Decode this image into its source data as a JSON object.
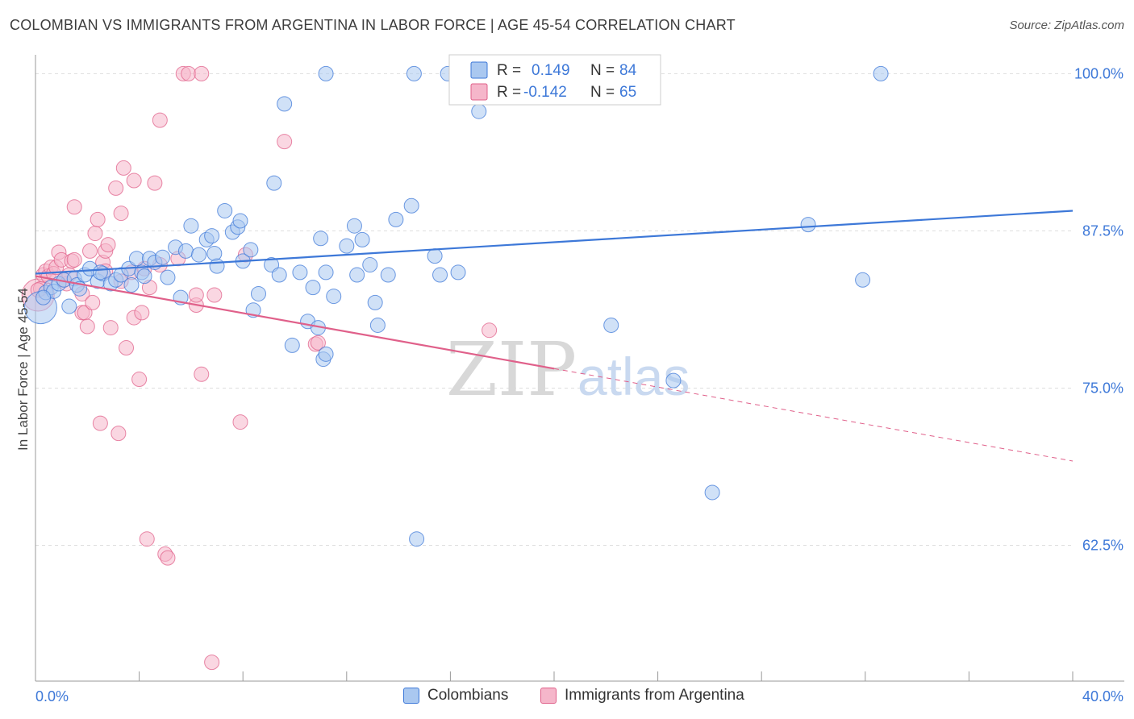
{
  "title": "COLOMBIAN VS IMMIGRANTS FROM ARGENTINA IN LABOR FORCE | AGE 45-54 CORRELATION CHART",
  "source": "Source: ZipAtlas.com",
  "watermark": {
    "zip": "ZIP",
    "atlas": "atlas"
  },
  "colors": {
    "blue": "#3d78d8",
    "blue_fill": "#aac8f0",
    "pink": "#e0608a",
    "pink_fill": "#f5b6ca",
    "tick_label": "#3d78d8",
    "grid": "#dddddd",
    "axis": "#999999"
  },
  "stats_legend": [
    {
      "r_label": "R =",
      "r_value": "0.149",
      "n_label": "N =",
      "n_value": "84",
      "series": "blue"
    },
    {
      "r_label": "R =",
      "r_value": "-0.142",
      "n_label": "N =",
      "n_value": "65",
      "series": "pink"
    }
  ],
  "chart_data": {
    "type": "scatter",
    "title": "COLOMBIAN VS IMMIGRANTS FROM ARGENTINA IN LABOR FORCE | AGE 45-54 CORRELATION CHART",
    "xlabel": "",
    "ylabel": "In Labor Force | Age 45-54",
    "xlim": [
      0,
      40
    ],
    "ylim": [
      51.7,
      101.5
    ],
    "x_tick_labels": [
      {
        "value": 0,
        "label": "0.0%"
      },
      {
        "value": 40,
        "label": "40.0%"
      }
    ],
    "x_minor_ticks": [
      4,
      8,
      12,
      16,
      20,
      24,
      28,
      32,
      36,
      40
    ],
    "y_ticks": [
      {
        "value": 100,
        "label": "100.0%"
      },
      {
        "value": 87.5,
        "label": "87.5%"
      },
      {
        "value": 75,
        "label": "75.0%"
      },
      {
        "value": 62.5,
        "label": "62.5%"
      }
    ],
    "grid": true,
    "legend_position": "bottom",
    "series": [
      {
        "name": "Colombians",
        "color": "#3d78d8",
        "fill": "#aac8f0",
        "trend": {
          "x": [
            0,
            40
          ],
          "y": [
            84.1,
            89.1
          ],
          "dashed_from": null
        },
        "points": [
          {
            "x": 0.2,
            "y": 81.4,
            "big": true
          },
          {
            "x": 0.4,
            "y": 82.6
          },
          {
            "x": 0.6,
            "y": 83.0
          },
          {
            "x": 0.7,
            "y": 82.7
          },
          {
            "x": 0.9,
            "y": 83.3
          },
          {
            "x": 1.1,
            "y": 83.6
          },
          {
            "x": 1.3,
            "y": 81.5
          },
          {
            "x": 1.5,
            "y": 83.7
          },
          {
            "x": 1.6,
            "y": 83.2
          },
          {
            "x": 1.9,
            "y": 84.0
          },
          {
            "x": 2.1,
            "y": 84.5
          },
          {
            "x": 2.4,
            "y": 83.5
          },
          {
            "x": 2.6,
            "y": 84.1
          },
          {
            "x": 2.9,
            "y": 83.3
          },
          {
            "x": 3.1,
            "y": 83.6
          },
          {
            "x": 3.3,
            "y": 84.0
          },
          {
            "x": 3.6,
            "y": 84.5
          },
          {
            "x": 3.9,
            "y": 85.3
          },
          {
            "x": 4.1,
            "y": 84.2
          },
          {
            "x": 4.2,
            "y": 83.9
          },
          {
            "x": 4.4,
            "y": 85.3
          },
          {
            "x": 4.6,
            "y": 85.0
          },
          {
            "x": 4.9,
            "y": 85.4
          },
          {
            "x": 5.1,
            "y": 83.8
          },
          {
            "x": 5.4,
            "y": 86.2
          },
          {
            "x": 5.6,
            "y": 82.2
          },
          {
            "x": 5.8,
            "y": 85.9
          },
          {
            "x": 6.0,
            "y": 87.9
          },
          {
            "x": 6.3,
            "y": 85.6
          },
          {
            "x": 6.6,
            "y": 86.8
          },
          {
            "x": 6.8,
            "y": 87.1
          },
          {
            "x": 6.9,
            "y": 85.7
          },
          {
            "x": 7.0,
            "y": 84.7
          },
          {
            "x": 7.3,
            "y": 89.1
          },
          {
            "x": 7.6,
            "y": 87.4
          },
          {
            "x": 7.8,
            "y": 87.8
          },
          {
            "x": 7.9,
            "y": 88.3
          },
          {
            "x": 8.0,
            "y": 85.1
          },
          {
            "x": 8.3,
            "y": 86.0
          },
          {
            "x": 8.4,
            "y": 81.2
          },
          {
            "x": 8.6,
            "y": 82.5
          },
          {
            "x": 9.1,
            "y": 84.8
          },
          {
            "x": 9.2,
            "y": 91.3
          },
          {
            "x": 9.4,
            "y": 84.0
          },
          {
            "x": 9.6,
            "y": 97.6
          },
          {
            "x": 9.9,
            "y": 78.4
          },
          {
            "x": 10.2,
            "y": 84.2
          },
          {
            "x": 10.5,
            "y": 80.3
          },
          {
            "x": 10.7,
            "y": 83.0
          },
          {
            "x": 10.9,
            "y": 79.8
          },
          {
            "x": 11.0,
            "y": 86.9
          },
          {
            "x": 11.1,
            "y": 77.3
          },
          {
            "x": 11.2,
            "y": 77.7
          },
          {
            "x": 11.2,
            "y": 84.2
          },
          {
            "x": 11.5,
            "y": 82.3
          },
          {
            "x": 11.2,
            "y": 100.0
          },
          {
            "x": 12.0,
            "y": 86.3
          },
          {
            "x": 12.3,
            "y": 87.9
          },
          {
            "x": 12.4,
            "y": 84.0
          },
          {
            "x": 12.6,
            "y": 86.8
          },
          {
            "x": 12.9,
            "y": 84.8
          },
          {
            "x": 13.1,
            "y": 81.8
          },
          {
            "x": 13.2,
            "y": 80.0
          },
          {
            "x": 13.6,
            "y": 84.0
          },
          {
            "x": 13.9,
            "y": 88.4
          },
          {
            "x": 14.5,
            "y": 89.5
          },
          {
            "x": 14.7,
            "y": 63.0
          },
          {
            "x": 14.6,
            "y": 100.0
          },
          {
            "x": 15.4,
            "y": 85.5
          },
          {
            "x": 15.6,
            "y": 84.0
          },
          {
            "x": 15.9,
            "y": 100.0
          },
          {
            "x": 16.3,
            "y": 84.2
          },
          {
            "x": 17.1,
            "y": 97.0
          },
          {
            "x": 22.1,
            "y": 100.0
          },
          {
            "x": 22.2,
            "y": 80.0
          },
          {
            "x": 24.6,
            "y": 75.6
          },
          {
            "x": 26.1,
            "y": 66.7
          },
          {
            "x": 29.8,
            "y": 88.0
          },
          {
            "x": 31.9,
            "y": 83.6
          },
          {
            "x": 32.6,
            "y": 100.0
          },
          {
            "x": 0.3,
            "y": 82.2
          },
          {
            "x": 1.7,
            "y": 82.9
          },
          {
            "x": 3.7,
            "y": 83.2
          },
          {
            "x": 2.5,
            "y": 84.2
          }
        ]
      },
      {
        "name": "Immigrants from Argentina",
        "color": "#e0608a",
        "fill": "#f5b6ca",
        "trend": {
          "x": [
            0,
            40
          ],
          "y": [
            83.9,
            69.2
          ],
          "dashed_from": 20
        },
        "points": [
          {
            "x": 0.1,
            "y": 82.4,
            "big": true
          },
          {
            "x": 0.2,
            "y": 82.9
          },
          {
            "x": 0.3,
            "y": 84.0
          },
          {
            "x": 0.4,
            "y": 84.3
          },
          {
            "x": 0.5,
            "y": 83.9
          },
          {
            "x": 0.6,
            "y": 84.6
          },
          {
            "x": 0.7,
            "y": 84.1
          },
          {
            "x": 0.8,
            "y": 84.6
          },
          {
            "x": 0.9,
            "y": 85.8
          },
          {
            "x": 1.0,
            "y": 85.2
          },
          {
            "x": 1.1,
            "y": 83.6
          },
          {
            "x": 1.2,
            "y": 83.3
          },
          {
            "x": 1.3,
            "y": 84.0
          },
          {
            "x": 1.4,
            "y": 85.1
          },
          {
            "x": 1.5,
            "y": 85.2
          },
          {
            "x": 1.5,
            "y": 89.4
          },
          {
            "x": 1.8,
            "y": 82.5
          },
          {
            "x": 1.8,
            "y": 81.0
          },
          {
            "x": 1.9,
            "y": 81.0
          },
          {
            "x": 2.0,
            "y": 79.9
          },
          {
            "x": 2.1,
            "y": 85.9
          },
          {
            "x": 2.2,
            "y": 81.8
          },
          {
            "x": 2.3,
            "y": 87.3
          },
          {
            "x": 2.4,
            "y": 88.4
          },
          {
            "x": 2.5,
            "y": 72.2
          },
          {
            "x": 2.6,
            "y": 85.0
          },
          {
            "x": 2.7,
            "y": 84.3
          },
          {
            "x": 2.7,
            "y": 85.9
          },
          {
            "x": 2.8,
            "y": 86.4
          },
          {
            "x": 2.9,
            "y": 79.8
          },
          {
            "x": 3.1,
            "y": 90.9
          },
          {
            "x": 3.2,
            "y": 71.4
          },
          {
            "x": 3.3,
            "y": 83.5
          },
          {
            "x": 3.3,
            "y": 88.9
          },
          {
            "x": 3.4,
            "y": 92.5
          },
          {
            "x": 3.5,
            "y": 78.2
          },
          {
            "x": 3.7,
            "y": 84.2
          },
          {
            "x": 3.8,
            "y": 91.5
          },
          {
            "x": 3.8,
            "y": 80.6
          },
          {
            "x": 4.0,
            "y": 75.7
          },
          {
            "x": 4.1,
            "y": 81.0
          },
          {
            "x": 4.2,
            "y": 84.5
          },
          {
            "x": 4.3,
            "y": 63.0
          },
          {
            "x": 4.4,
            "y": 83.0
          },
          {
            "x": 4.6,
            "y": 91.3
          },
          {
            "x": 4.8,
            "y": 84.8
          },
          {
            "x": 4.8,
            "y": 96.3
          },
          {
            "x": 5.0,
            "y": 61.8
          },
          {
            "x": 5.1,
            "y": 61.5
          },
          {
            "x": 5.5,
            "y": 85.3
          },
          {
            "x": 5.7,
            "y": 100.0
          },
          {
            "x": 5.9,
            "y": 100.0
          },
          {
            "x": 6.2,
            "y": 81.6
          },
          {
            "x": 6.2,
            "y": 82.4
          },
          {
            "x": 6.4,
            "y": 100.0
          },
          {
            "x": 6.4,
            "y": 76.1
          },
          {
            "x": 6.8,
            "y": 53.2
          },
          {
            "x": 6.9,
            "y": 82.4
          },
          {
            "x": 7.9,
            "y": 72.3
          },
          {
            "x": 8.1,
            "y": 85.6
          },
          {
            "x": 9.6,
            "y": 94.6
          },
          {
            "x": 10.8,
            "y": 78.5
          },
          {
            "x": 10.9,
            "y": 78.6
          },
          {
            "x": 17.5,
            "y": 79.6
          },
          {
            "x": 0.1,
            "y": 82.8
          }
        ]
      }
    ]
  },
  "legend_bottom": [
    {
      "label": "Colombians",
      "series": "blue"
    },
    {
      "label": "Immigrants from Argentina",
      "series": "pink"
    }
  ]
}
